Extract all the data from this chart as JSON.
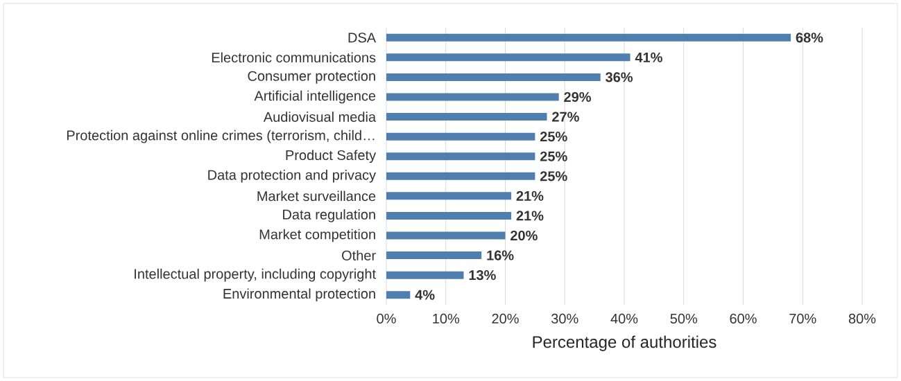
{
  "chart_data": {
    "type": "bar",
    "orientation": "horizontal",
    "xlabel": "Percentage of authorities",
    "categories": [
      "DSA",
      "Electronic communications",
      "Consumer protection",
      "Artificial intelligence",
      "Audiovisual media",
      "Protection against online crimes (terrorism, child…",
      "Product Safety",
      "Data protection and privacy",
      "Market surveillance",
      "Data regulation",
      "Market competition",
      "Other",
      "Intellectual property, including copyright",
      "Environmental protection"
    ],
    "values": [
      68,
      41,
      36,
      29,
      27,
      25,
      25,
      25,
      21,
      21,
      20,
      16,
      13,
      4
    ],
    "value_labels": [
      "68%",
      "41%",
      "36%",
      "29%",
      "27%",
      "25%",
      "25%",
      "25%",
      "21%",
      "21%",
      "20%",
      "16%",
      "13%",
      "4%"
    ],
    "color": "#4e7fae",
    "xlim": [
      0,
      80
    ],
    "xticks": [
      {
        "value": 0,
        "label": "0%"
      },
      {
        "value": 10,
        "label": "10%"
      },
      {
        "value": 20,
        "label": "20%"
      },
      {
        "value": 30,
        "label": "30%"
      },
      {
        "value": 40,
        "label": "40%"
      },
      {
        "value": 50,
        "label": "50%"
      },
      {
        "value": 60,
        "label": "60%"
      },
      {
        "value": 70,
        "label": "70%"
      },
      {
        "value": 80,
        "label": "80%"
      }
    ],
    "grid": "x"
  }
}
